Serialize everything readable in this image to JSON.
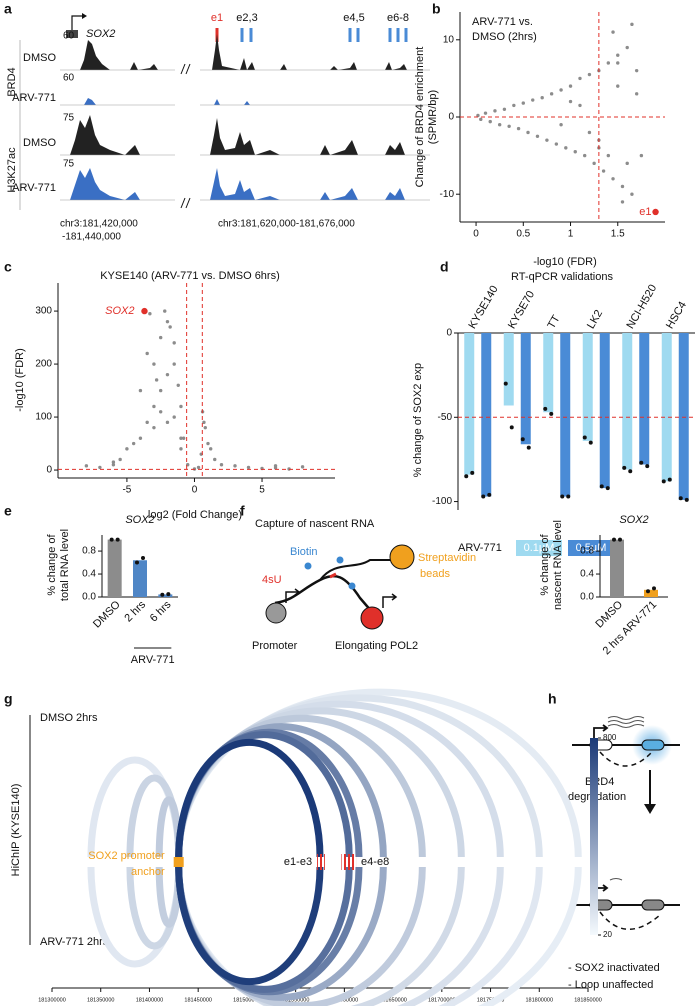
{
  "panel_a": {
    "panel": "a",
    "gene": "SOX2",
    "exons": [
      "e1",
      "e2,3",
      "e4,5",
      "e6-8"
    ],
    "groups": [
      "BRD4",
      "H3K27ac"
    ],
    "tracks": [
      {
        "name": "DMSO",
        "scale": 60
      },
      {
        "name": "ARV-771",
        "scale": 60
      },
      {
        "name": "DMSO",
        "scale": 75
      },
      {
        "name": "ARV-771",
        "scale": 75
      }
    ],
    "regions": [
      "chr3:181,420,000",
      "-181,440,000",
      "chr3:181,620,000-181,676,000"
    ]
  },
  "chart_data": [
    {
      "type": "scatter",
      "panel": "b",
      "title": [
        "ARV-771 vs.",
        "DMSO (2hrs)"
      ],
      "xlabel": "-log10 (FDR)",
      "ylabel": [
        "Change of BRD4 enrichment",
        "(SPMR/bp)"
      ],
      "x": [
        0.02,
        0.05,
        0.1,
        0.15,
        0.2,
        0.25,
        0.3,
        0.35,
        0.4,
        0.45,
        0.5,
        0.55,
        0.6,
        0.65,
        0.7,
        0.75,
        0.8,
        0.85,
        0.9,
        0.95,
        1.0,
        1.05,
        1.1,
        1.15,
        1.2,
        1.25,
        1.3,
        1.35,
        1.4,
        1.45,
        1.5,
        1.55,
        1.6,
        1.65,
        1.7,
        1.3,
        1.4,
        1.5,
        1.6,
        1.7,
        1.2,
        1.1,
        1.45,
        1.55,
        1.65,
        0.9,
        1.0,
        1.3,
        1.5,
        1.75
      ],
      "y": [
        0.2,
        -0.3,
        0.5,
        -0.6,
        0.8,
        -1,
        1,
        -1.2,
        1.5,
        -1.5,
        1.8,
        -2,
        2.2,
        -2.5,
        2.5,
        -3,
        3,
        -3.5,
        3.5,
        -4,
        4,
        -4.5,
        5,
        -5,
        5.5,
        -6,
        6,
        -7,
        7,
        -8,
        8,
        -9,
        9,
        -10,
        6,
        -3,
        -5,
        4,
        -6,
        3,
        -2,
        1.5,
        11,
        -11,
        12,
        -1,
        2,
        -4,
        7,
        -5
      ],
      "color": "#8c8c8c",
      "ref_color": "#e0302a",
      "vlines": [
        1.3
      ],
      "hlines": [
        0
      ],
      "highlight": {
        "x": 1.9,
        "y": -12.3,
        "label": "e1",
        "color": "#e0302a"
      },
      "xlim": [
        -0.17,
        2.0
      ],
      "ylim": [
        -13.6,
        13.6
      ],
      "xticks": [
        0,
        0.5,
        1,
        1.5
      ],
      "yticks": [
        10,
        0,
        -10
      ]
    },
    {
      "type": "scatter",
      "panel": "c",
      "title": "KYSE140 (ARV-771 vs. DMSO 6hrs)",
      "xlabel": "log2 (Fold Change)",
      "ylabel": "-log10 (FDR)",
      "x": [
        -8,
        -7,
        -6,
        -5.5,
        -5,
        -4.5,
        -4,
        -3.5,
        -3,
        -2.5,
        -2,
        -1.5,
        -1,
        -0.8,
        -3,
        -2.5,
        -2,
        -1.5,
        -1.2,
        -2.2,
        -1.8,
        -4,
        -3.5,
        -2.8,
        -1,
        -0.5,
        0,
        0.3,
        0.5,
        0.8,
        1,
        1.5,
        2,
        3,
        4,
        5,
        6,
        7,
        8,
        -2,
        -1.5,
        -2.5,
        -3,
        -1,
        0.6,
        0.7,
        1.2,
        -6,
        6,
        -3.3
      ],
      "y": [
        8,
        5,
        10,
        20,
        40,
        50,
        60,
        90,
        120,
        150,
        180,
        200,
        120,
        60,
        200,
        250,
        280,
        240,
        160,
        300,
        270,
        150,
        220,
        170,
        40,
        10,
        2,
        5,
        30,
        80,
        50,
        20,
        10,
        8,
        5,
        3,
        4,
        2,
        6,
        90,
        100,
        110,
        80,
        60,
        110,
        90,
        40,
        15,
        8,
        295
      ],
      "color": "#8c8c8c",
      "ref_color": "#e0302a",
      "vlines": [
        -0.58,
        0.58
      ],
      "hlines": [
        1.3
      ],
      "highlight": {
        "x": -3.7,
        "y": 300,
        "label": "SOX2",
        "color": "#e0302a"
      },
      "xlim": [
        -10.1,
        10.4
      ],
      "ylim": [
        -15,
        353
      ],
      "xticks": [
        -5,
        0,
        5
      ],
      "yticks": [
        0,
        100,
        200,
        300
      ]
    },
    {
      "type": "bar",
      "panel": "d",
      "title": "RT-qPCR validations",
      "ylabel": "% change of SOX2 exp",
      "legend_title": "ARV-771",
      "categories": [
        "KYSE140",
        "KYSE70",
        "TT",
        "LK2",
        "NCI-H520",
        "HSC4"
      ],
      "series": [
        {
          "name": "0.1µM",
          "color": "#9fdaf0",
          "values": [
            -84,
            -43,
            -47,
            -64,
            -81,
            -88
          ],
          "points": [
            [
              -85,
              -83
            ],
            [
              -30,
              -56
            ],
            [
              -45,
              -48
            ],
            [
              -62,
              -65
            ],
            [
              -80,
              -82
            ],
            [
              -88,
              -87
            ]
          ]
        },
        {
          "name": "0.5µM",
          "color": "#4a8bd6",
          "values": [
            -97,
            -66,
            -97,
            -92,
            -78,
            -99
          ],
          "points": [
            [
              -97,
              -96
            ],
            [
              -63,
              -68
            ],
            [
              -97,
              -97
            ],
            [
              -91,
              -92
            ],
            [
              -77,
              -79
            ],
            [
              -98,
              -99
            ]
          ]
        }
      ],
      "ref_color": "#e0302a",
      "hlines": [
        -50
      ],
      "ylim": [
        -105,
        0
      ],
      "yticks": [
        0,
        -50,
        -100
      ]
    },
    {
      "type": "bar",
      "panel": "e",
      "title": "SOX2",
      "ylabel": [
        "% change of",
        "total RNA level"
      ],
      "group_label": "ARV-771",
      "categories": [
        "DMSO",
        "2 hrs",
        "6 hrs"
      ],
      "values": [
        1.0,
        0.64,
        0.045
      ],
      "colors": [
        "#8c8c8c",
        "#4f86c6",
        "#4f86c6"
      ],
      "points": [
        [
          1,
          1
        ],
        [
          0.6,
          0.68
        ],
        [
          0.04,
          0.05
        ]
      ],
      "ylim": [
        0,
        1.08
      ],
      "yticks": [
        {
          "value": 0,
          "label": "0.0"
        },
        0.4,
        0.8
      ]
    },
    {
      "type": "bar",
      "panel": "f",
      "title": "SOX2",
      "ylabel": [
        "% change of",
        "nascent RNA level"
      ],
      "categories": [
        "DMSO",
        "2 hrs ARV-771"
      ],
      "values": [
        1.0,
        0.125
      ],
      "colors": [
        "#8c8c8c",
        "#f0a01e"
      ],
      "points": [
        [
          1,
          1
        ],
        [
          0.1,
          0.15
        ]
      ],
      "ylim": [
        0,
        1.08
      ],
      "yticks": [
        {
          "value": 0,
          "label": "0.0"
        },
        0.4,
        0.8
      ]
    },
    {
      "type": "arc",
      "panel": "g",
      "ylabel": "HiChIP (KYSE140)",
      "tracks": [
        "DMSO 2hrs",
        "ARV-771 2hrs"
      ],
      "anchor": {
        "position": 181430000,
        "label": [
          "SOX2 promoter",
          "anchor"
        ],
        "color": "#f0a01e"
      },
      "exons": [
        {
          "label": "e1-e3",
          "start": 181572000,
          "end": 181580000
        },
        {
          "label": "e4-e8",
          "start": 181597000,
          "end": 181612000
        }
      ],
      "loops": {
        "start": [
          181430000,
          181430000,
          181430000,
          181430000,
          181430000,
          181430000,
          181430000,
          181430000,
          181430000,
          181430000,
          181430000,
          181430000
        ],
        "end": [
          181340000,
          181380000,
          181410000,
          181575000,
          181605000,
          181615000,
          181640000,
          181680000,
          181720000,
          181760000,
          181800000,
          181840000
        ],
        "dmso": [
          60,
          120,
          150,
          800,
          560,
          480,
          300,
          160,
          110,
          90,
          70,
          50
        ],
        "arv": [
          60,
          110,
          140,
          780,
          540,
          470,
          280,
          150,
          100,
          80,
          60,
          45
        ]
      },
      "colorbar": {
        "lim": [
          20,
          800
        ],
        "ticks": [
          800,
          20
        ],
        "colors": [
          "#f4f9fd",
          "#1b3a78"
        ]
      },
      "xlim": [
        181300000,
        181850000
      ],
      "xticks": [
        181300000,
        181350000,
        181400000,
        181450000,
        181500000,
        181550000,
        181600000,
        181650000,
        181700000,
        181750000,
        181800000,
        181850000
      ]
    }
  ],
  "panel_f_diagram": {
    "title": "Capture of nascent RNA",
    "labels": [
      "Biotin",
      "4sU",
      "Streptavidin",
      "beads",
      "Promoter",
      "Elongating POL2"
    ]
  },
  "panel_h": {
    "panel": "h",
    "step": [
      "BRD4",
      "degradation"
    ],
    "notes": [
      "- SOX2 inactivated",
      "- Loop unaffected"
    ]
  }
}
